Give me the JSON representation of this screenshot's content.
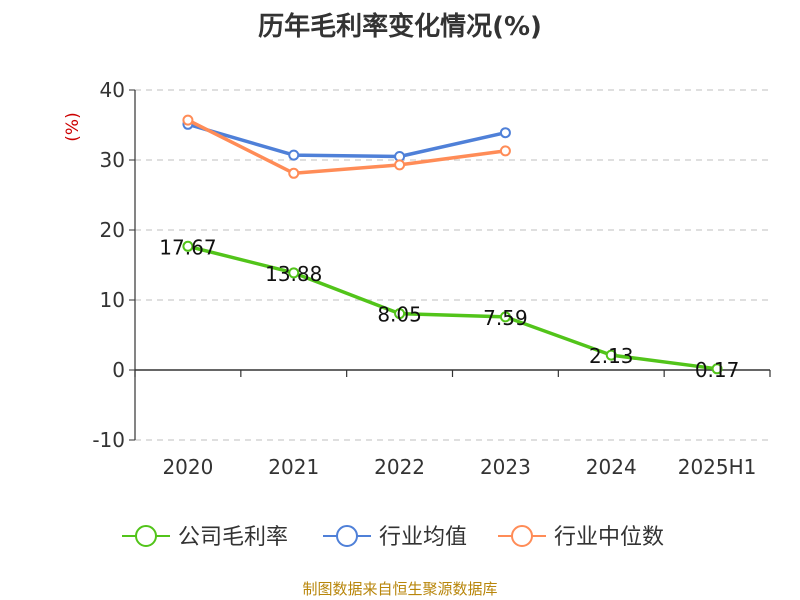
{
  "chart_data": {
    "type": "line",
    "title": "历年毛利率变化情况(%)",
    "ylabel": "(%)",
    "categories": [
      "2020",
      "2021",
      "2022",
      "2023",
      "2024",
      "2025H1"
    ],
    "ylim": [
      -10,
      40
    ],
    "yticks": [
      -10,
      0,
      10,
      20,
      30,
      40
    ],
    "grid": true,
    "legend_position": "bottom",
    "series": [
      {
        "name": "公司毛利率",
        "color": "#52c41a",
        "values": [
          17.67,
          13.88,
          8.05,
          7.59,
          2.13,
          0.17
        ],
        "labels": [
          "17.67",
          "13.88",
          "8.05",
          "7.59",
          "2.13",
          "0.17"
        ]
      },
      {
        "name": "行业均值",
        "color": "#4f80d8",
        "values": [
          35.1,
          30.7,
          30.5,
          33.9,
          null,
          null
        ]
      },
      {
        "name": "行业中位数",
        "color": "#ff8c57",
        "values": [
          35.7,
          28.1,
          29.3,
          31.3,
          null,
          null
        ]
      }
    ]
  },
  "footer": "制图数据来自恒生聚源数据库"
}
